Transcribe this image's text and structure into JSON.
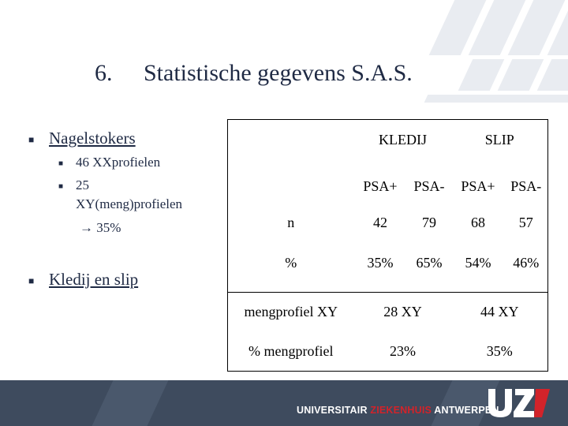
{
  "slide": {
    "title_number": "6.",
    "title_text": "Statistische gegevens S.A.S."
  },
  "bullets": {
    "b1": "Nagelstokers",
    "b1_sub1": "46 XXprofielen",
    "b1_sub2_line1": "25",
    "b1_sub2_line2": "XY(meng)profielen",
    "b1_arrow": "35%",
    "b2": "Kledij en slip"
  },
  "table": {
    "groups": [
      "KLEDIJ",
      "SLIP"
    ],
    "subheaders": [
      "PSA+",
      "PSA-",
      "PSA+",
      "PSA-"
    ],
    "row_n": {
      "label": "n",
      "values": [
        "42",
        "79",
        "68",
        "57"
      ]
    },
    "row_pct": {
      "label": "%",
      "values": [
        "35%",
        "65%",
        "54%",
        "46%"
      ]
    },
    "row_meng": {
      "label": "mengprofiel XY",
      "values": [
        "28 XY",
        "44 XY"
      ]
    },
    "row_pctmeng": {
      "label": "% mengprofiel",
      "values": [
        "23%",
        "35%"
      ]
    }
  },
  "footer": {
    "brand_part1": "UNIVERSITAIR ",
    "brand_part2": "ZIEKENHUIS",
    "brand_part3": " ANTWERPEN",
    "logo_text": "UZA",
    "colors": {
      "bar": "#3e4b5e",
      "accent": "#d2232a",
      "text": "#ffffff"
    }
  }
}
